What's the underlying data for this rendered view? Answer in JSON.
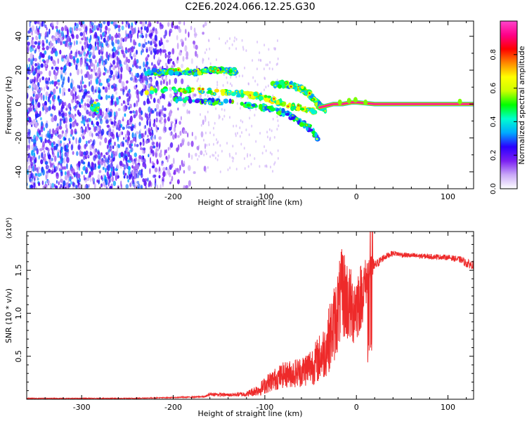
{
  "figure": {
    "title": "C2E6.2024.066.12.25.G30"
  },
  "chart_data": [
    {
      "type": "heatmap",
      "xlabel": "Height of straight line (km)",
      "ylabel": "Frequency (Hz)",
      "xlim": [
        -360,
        128
      ],
      "ylim": [
        -50,
        49
      ],
      "xticks": [
        -300,
        -200,
        -100,
        0,
        100
      ],
      "xtick_labels": [
        "-300",
        "-200",
        "-100",
        "0",
        "100"
      ],
      "yticks": [
        -40,
        -20,
        0,
        20,
        40
      ],
      "ytick_labels": [
        "-40",
        "-20",
        "0",
        "20",
        "40"
      ],
      "colorbar": {
        "label": "Normalized spectral amplitude",
        "range": [
          0,
          1
        ],
        "ticks": [
          0.0,
          0.2,
          0.4,
          0.6,
          0.8
        ],
        "tick_labels": [
          "0.0",
          "0.2",
          "0.4",
          "0.6",
          "0.8"
        ],
        "colormap": [
          "#ffffff",
          "#c9a8f7",
          "#7b1ff2",
          "#2a00ff",
          "#00aaff",
          "#00ffd0",
          "#00ff00",
          "#ccff00",
          "#ffff00",
          "#ff8800",
          "#ff0000",
          "#ff0088",
          "#ff44cc"
        ]
      },
      "features": [
        {
          "name": "noise floor",
          "x_range": [
            -360,
            -170
          ],
          "y_range": [
            -50,
            49
          ],
          "intensity": 0.15
        },
        {
          "name": "upper line",
          "points": [
            [
              -230,
              19
            ],
            [
              -200,
              19
            ],
            [
              -175,
              19
            ],
            [
              -160,
              20
            ],
            [
              -145,
              20
            ],
            [
              -130,
              19
            ]
          ],
          "intensity": 0.35
        },
        {
          "name": "main trace",
          "points": [
            [
              -230,
              8
            ],
            [
              -200,
              8
            ],
            [
              -175,
              8
            ],
            [
              -150,
              7
            ],
            [
              -125,
              6
            ],
            [
              -110,
              5
            ],
            [
              -95,
              3
            ],
            [
              -85,
              1
            ],
            [
              -75,
              -1
            ],
            [
              -65,
              -2
            ],
            [
              -55,
              -3
            ],
            [
              -45,
              -4
            ]
          ],
          "intensity": 0.45
        },
        {
          "name": "upper branch",
          "points": [
            [
              -90,
              12
            ],
            [
              -70,
              11
            ],
            [
              -60,
              9
            ],
            [
              -52,
              6
            ],
            [
              -45,
              2
            ],
            [
              -40,
              -1
            ],
            [
              -35,
              -3
            ]
          ],
          "intensity": 0.4
        },
        {
          "name": "lower branch",
          "points": [
            [
              -200,
              3
            ],
            [
              -180,
              2
            ],
            [
              -150,
              1
            ],
            [
              -120,
              0
            ],
            [
              -100,
              -2
            ],
            [
              -85,
              -4
            ],
            [
              -70,
              -7
            ],
            [
              -60,
              -11
            ],
            [
              -50,
              -15
            ],
            [
              -42,
              -20
            ]
          ],
          "intensity": 0.3
        },
        {
          "name": "carrier",
          "points": [
            [
              -40,
              -2
            ],
            [
              -25,
              0
            ],
            [
              -15,
              0
            ],
            [
              -5,
              1
            ],
            [
              0,
              1
            ],
            [
              20,
              0
            ],
            [
              60,
              0
            ],
            [
              128,
              0
            ]
          ],
          "intensity": 1.0
        },
        {
          "name": "blob at -285",
          "points": [
            [
              -285,
              -2
            ]
          ],
          "intensity": 0.45
        }
      ]
    },
    {
      "type": "line",
      "xlabel": "Height of straight line (km)",
      "ylabel": "SNR (10 * v/v)",
      "multiplier": "(x10⁴)",
      "xlim": [
        -360,
        128
      ],
      "ylim": [
        0,
        1.95
      ],
      "xticks": [
        -300,
        -200,
        -100,
        0,
        100
      ],
      "xtick_labels": [
        "-300",
        "-200",
        "-100",
        "0",
        "100"
      ],
      "yticks": [
        0.5,
        1.0,
        1.5
      ],
      "ytick_labels": [
        "0.5",
        "1.0",
        "1.5"
      ],
      "series": [
        {
          "name": "SNR",
          "color": "#ee2a2a",
          "x": [
            -360,
            -300,
            -250,
            -200,
            -165,
            -160,
            -140,
            -120,
            -105,
            -95,
            -80,
            -60,
            -45,
            -35,
            -25,
            -15,
            -10,
            -5,
            0,
            5,
            15,
            20,
            30,
            40,
            50,
            60,
            80,
            100,
            115,
            120,
            128
          ],
          "y": [
            0.01,
            0.01,
            0.01,
            0.02,
            0.03,
            0.06,
            0.05,
            0.06,
            0.12,
            0.2,
            0.28,
            0.32,
            0.42,
            0.55,
            0.85,
            1.25,
            1.15,
            1.05,
            1.1,
            1.2,
            1.5,
            1.55,
            1.65,
            1.7,
            1.68,
            1.67,
            1.66,
            1.65,
            1.62,
            1.58,
            1.56
          ],
          "noise": [
            0.004,
            0.004,
            0.004,
            0.005,
            0.008,
            0.02,
            0.02,
            0.03,
            0.08,
            0.12,
            0.15,
            0.18,
            0.25,
            0.32,
            0.45,
            0.55,
            0.5,
            0.45,
            0.45,
            0.4,
            0.2,
            0.06,
            0.04,
            0.03,
            0.03,
            0.03,
            0.03,
            0.03,
            0.04,
            0.05,
            0.05
          ]
        }
      ]
    }
  ]
}
